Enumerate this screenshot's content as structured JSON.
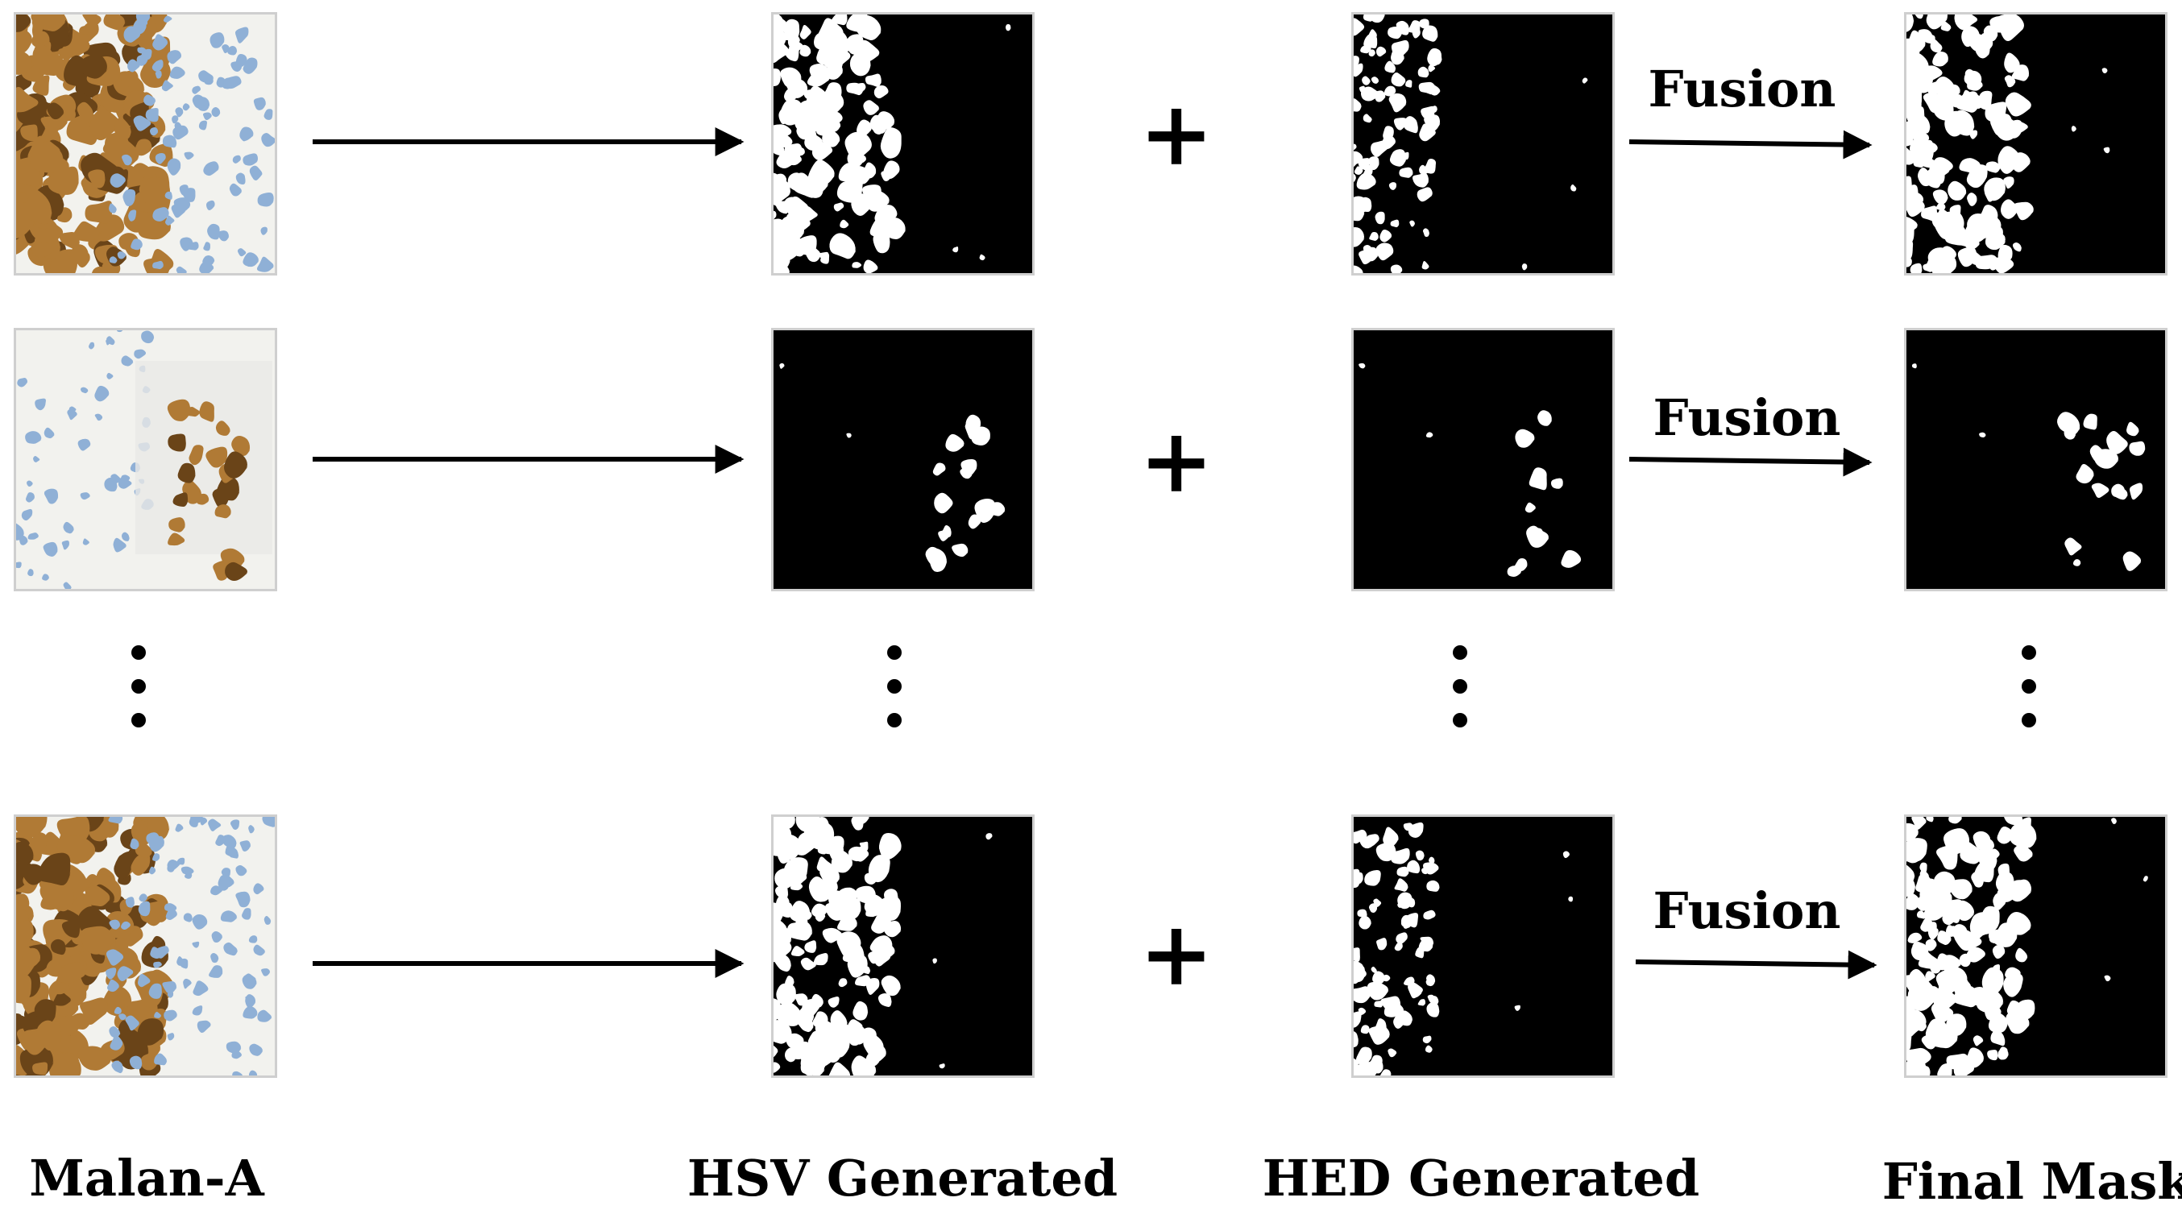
{
  "column_labels": {
    "malan": "Malan-A",
    "hsv": "HSV Generated",
    "hed": "HED Generated",
    "final": "Final Mask"
  },
  "operators": {
    "plus": "+",
    "fusion": "Fusion"
  },
  "rows": [
    {
      "id": "row-1",
      "tissue_variant": "stain-left-dense"
    },
    {
      "id": "row-2",
      "tissue_variant": "stain-sparse-right"
    },
    {
      "id": "row-3",
      "tissue_variant": "stain-left-dense"
    }
  ],
  "colors": {
    "stain_brown": "#b07a35",
    "stain_dark": "#6a4418",
    "nuclei_blue": "#8fb0d6",
    "background_tissue": "#f2f2ee",
    "mask_black": "#000000",
    "mask_white": "#ffffff",
    "frame_gray": "#cfcfcf"
  }
}
